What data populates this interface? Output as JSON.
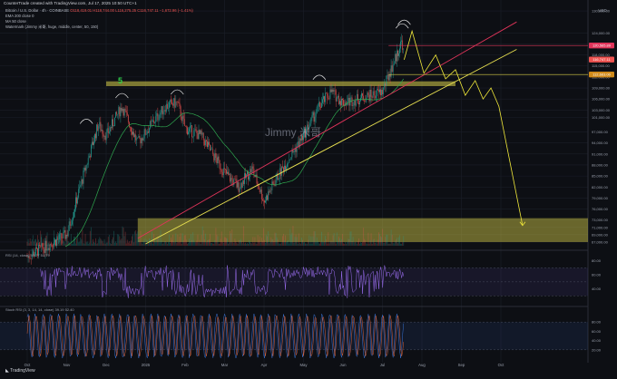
{
  "header": {
    "credit": "CounterTrade created with TradingView.com, Jul 17, 2025 10:50 UTC+1",
    "symbol_line": "Bitcoin / U.S. Dollar · 4h · COINBASE",
    "ohlc_line": "O118,419.01 H118,744.00 L116,275.25 C116,747.11",
    "change_line": "−1,672.96 (−1.41%)",
    "ema_line": "EMA 200 close 0",
    "ma_line": "MA 50 close",
    "watermark_line": "Watermark (Jimmy 米哥, huge, middle, center, 50, 150)"
  },
  "watermark": "Jimmy 米哥",
  "wave_label": "5",
  "footer_brand": "TradingView",
  "currency": "USD",
  "price_badges": {
    "top": "120,565.89",
    "current": "116,747.11",
    "level": "112,663.00"
  },
  "panels": {
    "rsi_legend": "RSI (14, close) 51.27 51.79",
    "stoch_legend": "Stoch RSI (3, 3, 14, 14, close) 39.19 52.40"
  },
  "colors": {
    "up": "#26a69a",
    "down": "#ef5350",
    "yellow_zone": "#d9d04a",
    "red_line": "#e0345a",
    "yellow_line": "#e8e050",
    "ma": "#2fa84f",
    "projection": "#f2ea3a",
    "rsi": "#9c6ef2",
    "stoch_k": "#3d7de8",
    "stoch_d": "#ef6a3a"
  },
  "chart_data": [
    {
      "type": "candlestick",
      "title": "Bitcoin / U.S. Dollar · 4h · COINBASE",
      "ylabel": "USD",
      "x_ticks": [
        "Oct",
        "Nov",
        "Dec",
        "2025",
        "Feb",
        "Mar",
        "Apr",
        "May",
        "Jun",
        "Jul",
        "Aug",
        "Sep",
        "Oct"
      ],
      "y_ticks": [
        "130,000.00",
        "124,000.00",
        "121,000.00",
        "118,000.00",
        "115,000.00",
        "112,000.00",
        "109,000.00",
        "106,000.00",
        "103,000.00",
        "101,000.00",
        "97,000.00",
        "94,000.00",
        "91,000.00",
        "88,000.00",
        "85,000.00",
        "82,000.00",
        "79,000.00",
        "76,000.00",
        "73,000.00",
        "71,000.00",
        "69,000.00",
        "67,000.00"
      ],
      "ylim": [
        66000,
        131000
      ],
      "price_path": [
        [
          "Oct",
          63000
        ],
        [
          "Oct-m",
          66000
        ],
        [
          "Nov",
          69000
        ],
        [
          "Nov-m",
          88000
        ],
        [
          "Nov-l",
          99000
        ],
        [
          "Dec",
          96000
        ],
        [
          "Dec-m",
          104000
        ],
        [
          "Dec-l",
          94000
        ],
        [
          "2025",
          97000
        ],
        [
          "Jan-m",
          104000
        ],
        [
          "Jan-l",
          105000
        ],
        [
          "Feb",
          98000
        ],
        [
          "Feb-m",
          96000
        ],
        [
          "Mar",
          86000
        ],
        [
          "Mar-m",
          82000
        ],
        [
          "Mar-l",
          87000
        ],
        [
          "Apr",
          78000
        ],
        [
          "Apr-m",
          85000
        ],
        [
          "May",
          96000
        ],
        [
          "May-m",
          104000
        ],
        [
          "May-l",
          108000
        ],
        [
          "Jun",
          105000
        ],
        [
          "Jun-m",
          106000
        ],
        [
          "Jun-l",
          107000
        ],
        [
          "Jul",
          108000
        ],
        [
          "Jul-m",
          122000
        ],
        [
          "Jul-17",
          116747
        ]
      ],
      "zones": [
        {
          "name": "resistance band",
          "from": 109500,
          "to": 110800,
          "x_from": "Dec",
          "x_to": "Aug-l"
        },
        {
          "name": "target zone",
          "from": 67000,
          "to": 73500,
          "x_from": "Dec-l",
          "x_to": "Oct"
        }
      ],
      "projection_path": [
        [
          "Jul-17",
          116700
        ],
        [
          "Jul-l",
          124500
        ],
        [
          "Aug",
          113000
        ],
        [
          "Aug-m",
          118000
        ],
        [
          "Aug-m2",
          111500
        ],
        [
          "Aug-l",
          114000
        ],
        [
          "Aug-l2",
          107000
        ],
        [
          "Sep",
          111000
        ],
        [
          "Sep-m",
          106000
        ],
        [
          "Sep-m2",
          109000
        ],
        [
          "Sep-l",
          104000
        ],
        [
          "Oct",
          71500
        ]
      ],
      "trendlines": [
        {
          "name": "red channel",
          "color": "red",
          "from": [
            "Dec-l",
            68000
          ],
          "to": [
            "Oct",
            127000
          ]
        },
        {
          "name": "yellow trendline",
          "color": "yellow",
          "from": [
            "2025",
            66500
          ],
          "to": [
            "Oct",
            119500
          ]
        }
      ],
      "horizontal_lines": [
        120565.89,
        112663.0
      ]
    },
    {
      "type": "line",
      "title": "RSI (14, close)",
      "y_ticks": [
        "80.00",
        "60.00",
        "40.00"
      ],
      "ylim": [
        20,
        90
      ],
      "band": [
        30,
        70
      ],
      "last_values": [
        51.27,
        51.79
      ]
    },
    {
      "type": "line",
      "title": "Stoch RSI (3, 3, 14, 14, close)",
      "y_ticks": [
        "80.00",
        "60.00",
        "40.00",
        "20.00"
      ],
      "ylim": [
        0,
        100
      ],
      "band": [
        20,
        80
      ],
      "series": [
        {
          "name": "K",
          "last": 39.19
        },
        {
          "name": "D",
          "last": 52.4
        }
      ]
    }
  ]
}
